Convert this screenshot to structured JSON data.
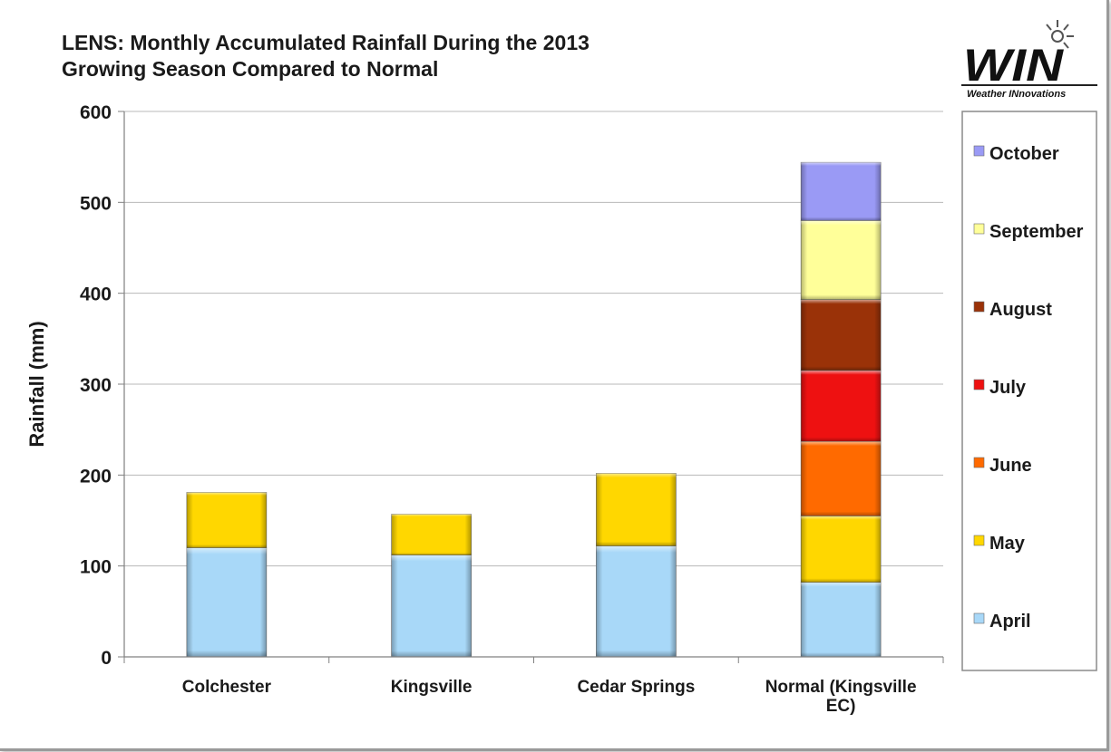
{
  "logo": {
    "mark": "WIN",
    "tagline": "Weather INnovations"
  },
  "chart_data": {
    "type": "bar",
    "stacked": true,
    "title": [
      "LENS: Monthly Accumulated Rainfall During the 2013",
      "Growing Season Compared to Normal"
    ],
    "xlabel": "",
    "ylabel": "Rainfall (mm)",
    "ylim": [
      0,
      600
    ],
    "yticks": [
      0,
      100,
      200,
      300,
      400,
      500,
      600
    ],
    "grid": true,
    "legend_position": "right",
    "categories": [
      [
        "Colchester"
      ],
      [
        "Kingsville"
      ],
      [
        "Cedar Springs"
      ],
      [
        "Normal (Kingsville",
        "EC)"
      ]
    ],
    "series": [
      {
        "name": "April",
        "color": "#a8d8f8",
        "values": [
          120,
          112,
          122,
          82
        ]
      },
      {
        "name": "May",
        "color": "#ffd700",
        "values": [
          61,
          45,
          80,
          73
        ]
      },
      {
        "name": "June",
        "color": "#ff6a00",
        "values": [
          0,
          0,
          0,
          82
        ]
      },
      {
        "name": "July",
        "color": "#ee1111",
        "values": [
          0,
          0,
          0,
          78
        ]
      },
      {
        "name": "August",
        "color": "#9a3208",
        "values": [
          0,
          0,
          0,
          78
        ]
      },
      {
        "name": "September",
        "color": "#ffff99",
        "values": [
          0,
          0,
          0,
          87
        ]
      },
      {
        "name": "October",
        "color": "#9a9af5",
        "values": [
          0,
          0,
          0,
          64
        ]
      }
    ]
  }
}
